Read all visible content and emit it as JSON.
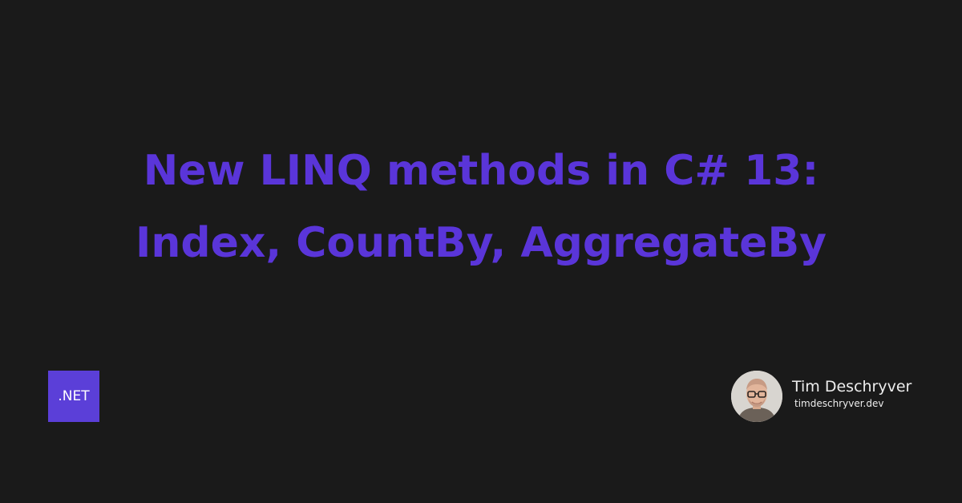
{
  "title": {
    "line1": "New LINQ methods in C# 13:",
    "line2": "Index, CountBy, AggregateBy"
  },
  "badge": {
    "label": ".NET"
  },
  "author": {
    "name": "Tim Deschryver",
    "website": "timdeschryver.dev"
  },
  "colors": {
    "background": "#1a1a1a",
    "title": "#5a35d9",
    "badge": "#5b3fd8",
    "text": "#ededed"
  }
}
